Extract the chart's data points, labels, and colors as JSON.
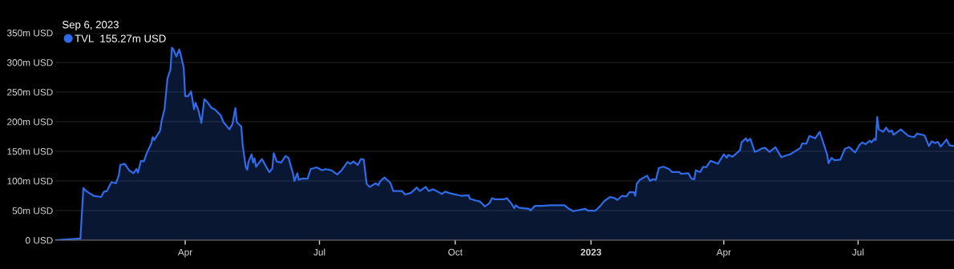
{
  "chart_data": {
    "type": "area",
    "x": [
      "2022-01-03",
      "2022-01-20",
      "2022-01-22",
      "2022-01-24",
      "2022-01-27",
      "2022-01-29",
      "2022-02-03",
      "2022-02-05",
      "2022-02-07",
      "2022-02-10",
      "2022-02-13",
      "2022-02-15",
      "2022-02-16",
      "2022-02-19",
      "2022-02-22",
      "2022-02-25",
      "2022-02-27",
      "2022-02-28",
      "2022-03-02",
      "2022-03-04",
      "2022-03-06",
      "2022-03-09",
      "2022-03-10",
      "2022-03-11",
      "2022-03-15",
      "2022-03-16",
      "2022-03-18",
      "2022-03-20",
      "2022-03-22",
      "2022-03-23",
      "2022-03-24",
      "2022-03-26",
      "2022-03-28",
      "2022-03-29",
      "2022-03-31",
      "2022-04-01",
      "2022-04-03",
      "2022-04-05",
      "2022-04-07",
      "2022-04-08",
      "2022-04-10",
      "2022-04-12",
      "2022-04-14",
      "2022-04-16",
      "2022-04-19",
      "2022-04-21",
      "2022-04-25",
      "2022-04-27",
      "2022-05-01",
      "2022-05-03",
      "2022-05-05",
      "2022-05-06",
      "2022-05-09",
      "2022-05-10",
      "2022-05-12",
      "2022-05-13",
      "2022-05-14",
      "2022-05-16",
      "2022-05-17",
      "2022-05-18",
      "2022-05-19",
      "2022-05-23",
      "2022-05-25",
      "2022-05-28",
      "2022-05-30",
      "2022-05-31",
      "2022-06-02",
      "2022-06-05",
      "2022-06-08",
      "2022-06-10",
      "2022-06-13",
      "2022-06-14",
      "2022-06-16",
      "2022-06-17",
      "2022-06-19",
      "2022-06-23",
      "2022-06-25",
      "2022-06-29",
      "2022-07-03",
      "2022-07-05",
      "2022-07-09",
      "2022-07-13",
      "2022-07-16",
      "2022-07-20",
      "2022-07-22",
      "2022-07-24",
      "2022-07-27",
      "2022-07-29",
      "2022-07-31",
      "2022-08-02",
      "2022-08-04",
      "2022-08-08",
      "2022-08-10",
      "2022-08-11",
      "2022-08-14",
      "2022-08-18",
      "2022-08-20",
      "2022-08-26",
      "2022-08-28",
      "2022-09-01",
      "2022-09-05",
      "2022-09-07",
      "2022-09-11",
      "2022-09-13",
      "2022-09-16",
      "2022-09-22",
      "2022-09-24",
      "2022-09-28",
      "2022-10-05",
      "2022-10-10",
      "2022-10-11",
      "2022-10-15",
      "2022-10-18",
      "2022-10-21",
      "2022-10-24",
      "2022-10-26",
      "2022-10-28",
      "2022-11-03",
      "2022-11-05",
      "2022-11-08",
      "2022-11-10",
      "2022-11-11",
      "2022-11-13",
      "2022-11-20",
      "2022-11-21",
      "2022-11-24",
      "2022-11-29",
      "2022-12-05",
      "2022-12-14",
      "2022-12-17",
      "2022-12-20",
      "2022-12-28",
      "2022-12-30",
      "2023-01-04",
      "2023-01-07",
      "2023-01-10",
      "2023-01-14",
      "2023-01-17",
      "2023-01-19",
      "2023-01-22",
      "2023-01-25",
      "2023-01-27",
      "2023-01-30",
      "2023-01-31",
      "2023-02-01",
      "2023-02-03",
      "2023-02-04",
      "2023-02-08",
      "2023-02-10",
      "2023-02-12",
      "2023-02-14",
      "2023-02-16",
      "2023-02-19",
      "2023-02-23",
      "2023-02-25",
      "2023-03-02",
      "2023-03-03",
      "2023-03-08",
      "2023-03-10",
      "2023-03-12",
      "2023-03-13",
      "2023-03-16",
      "2023-03-18",
      "2023-03-20",
      "2023-03-23",
      "2023-03-28",
      "2023-04-01",
      "2023-04-03",
      "2023-04-04",
      "2023-04-07",
      "2023-04-12",
      "2023-04-13",
      "2023-04-16",
      "2023-04-17",
      "2023-04-19",
      "2023-04-22",
      "2023-04-24",
      "2023-04-27",
      "2023-04-29",
      "2023-05-02",
      "2023-05-06",
      "2023-05-10",
      "2023-05-13",
      "2023-05-16",
      "2023-05-23",
      "2023-05-24",
      "2023-05-27",
      "2023-05-29",
      "2023-05-30",
      "2023-06-02",
      "2023-06-05",
      "2023-06-08",
      "2023-06-10",
      "2023-06-11",
      "2023-06-13",
      "2023-06-15",
      "2023-06-19",
      "2023-06-22",
      "2023-06-25",
      "2023-06-29",
      "2023-07-02",
      "2023-07-04",
      "2023-07-06",
      "2023-07-09",
      "2023-07-10",
      "2023-07-12",
      "2023-07-13",
      "2023-07-14",
      "2023-07-15",
      "2023-07-18",
      "2023-07-20",
      "2023-07-22",
      "2023-07-24",
      "2023-07-25",
      "2023-07-30",
      "2023-08-04",
      "2023-08-08",
      "2023-08-10",
      "2023-08-15",
      "2023-08-18",
      "2023-08-20",
      "2023-08-22",
      "2023-08-24",
      "2023-08-26",
      "2023-08-30",
      "2023-09-01",
      "2023-09-04"
    ],
    "series": [
      {
        "name": "TVL",
        "color": "#2f6be8",
        "values": [
          0,
          3,
          88,
          83,
          78,
          75,
          73,
          82,
          83,
          98,
          96,
          109,
          127,
          129,
          118,
          113,
          120,
          114,
          134,
          133,
          147,
          163,
          174,
          169,
          185,
          201,
          221,
          273,
          288,
          325,
          322,
          310,
          322,
          313,
          291,
          243,
          243,
          251,
          221,
          232,
          219,
          198,
          238,
          233,
          223,
          221,
          211,
          199,
          187,
          196,
          223,
          199,
          192,
          160,
          124,
          119,
          133,
          145,
          131,
          138,
          124,
          137,
          128,
          115,
          121,
          147,
          133,
          131,
          142,
          139,
          113,
          100,
          113,
          102,
          104,
          104,
          120,
          123,
          118,
          120,
          118,
          111,
          118,
          132,
          129,
          133,
          127,
          137,
          136,
          95,
          90,
          96,
          93,
          99,
          106,
          97,
          83,
          83,
          77,
          80,
          89,
          83,
          90,
          83,
          86,
          78,
          82,
          79,
          75,
          76,
          70,
          67,
          65,
          57,
          62,
          71,
          69,
          69,
          71,
          62,
          54,
          59,
          55,
          53,
          50,
          58,
          58,
          59,
          59,
          53,
          49,
          53,
          50,
          50,
          57,
          66,
          73,
          71,
          68,
          75,
          74,
          81,
          81,
          75,
          95,
          102,
          103,
          109,
          100,
          103,
          102,
          122,
          124,
          120,
          115,
          115,
          112,
          113,
          104,
          103,
          118,
          115,
          124,
          123,
          134,
          129,
          145,
          139,
          144,
          141,
          152,
          165,
          172,
          167,
          171,
          149,
          151,
          155,
          156,
          149,
          157,
          140,
          143,
          145,
          156,
          163,
          163,
          176,
          175,
          172,
          183,
          160,
          145,
          130,
          139,
          135,
          136,
          154,
          157,
          148,
          161,
          165,
          162,
          168,
          165,
          171,
          169,
          208,
          187,
          183,
          190,
          183,
          185,
          178,
          187,
          176,
          174,
          180,
          177,
          159,
          167,
          164,
          166,
          158,
          170,
          160,
          159
        ]
      }
    ],
    "xlim": [
      "2022-01-03",
      "2023-09-04"
    ],
    "xticks": [
      {
        "value": "2022-04-01",
        "label": "Apr"
      },
      {
        "value": "2022-07-01",
        "label": "Jul"
      },
      {
        "value": "2022-10-01",
        "label": "Oct"
      },
      {
        "value": "2023-01-01",
        "label": "2023"
      },
      {
        "value": "2023-04-01",
        "label": "Apr"
      },
      {
        "value": "2023-07-01",
        "label": "Jul"
      }
    ],
    "ylim": [
      0,
      350
    ],
    "yticks": [
      {
        "value": 0,
        "label": "0 USD"
      },
      {
        "value": 50,
        "label": "50m USD"
      },
      {
        "value": 100,
        "label": "100m USD"
      },
      {
        "value": 150,
        "label": "150m USD"
      },
      {
        "value": 200,
        "label": "200m USD"
      },
      {
        "value": 250,
        "label": "250m USD"
      },
      {
        "value": 300,
        "label": "300m USD"
      },
      {
        "value": 350,
        "label": "350m USD"
      }
    ],
    "grid": "y",
    "legend": "top left",
    "annotations": [
      "Sep 6, 2023",
      "155.27m USD"
    ]
  }
}
